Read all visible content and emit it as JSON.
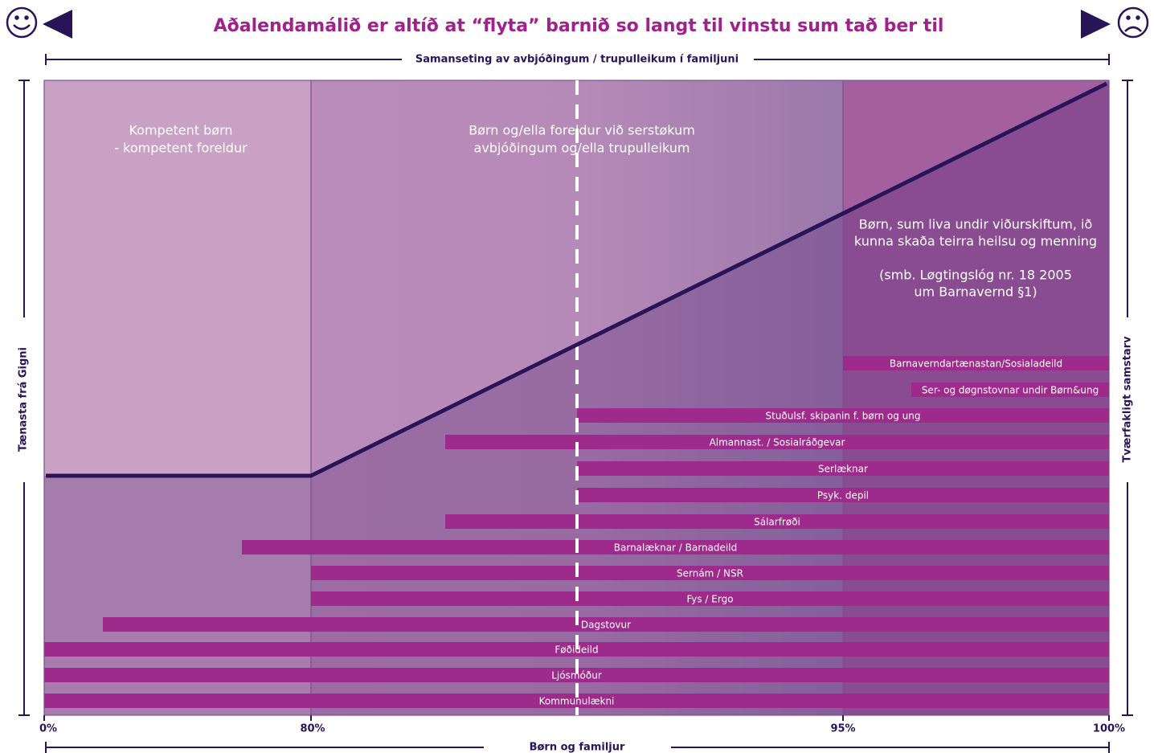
{
  "header": {
    "title": "Aðalendamálið er altíð at “flyta” barnið so langt til vinstu sum tað ber til"
  },
  "top_axis": {
    "label": "Samanseting av avbjóðingum / trupulleikum í familjuni"
  },
  "left_axis": {
    "label": "Tænasta frá Gigni"
  },
  "right_axis": {
    "label": "Tværfakligt samstarv"
  },
  "bottom_axis": {
    "label": "Børn og familjur",
    "ticks": [
      "0%",
      "80%",
      "95%",
      "100%"
    ]
  },
  "regions": [
    {
      "lines": [
        "Kompetent børn",
        "- kompetent foreldur"
      ]
    },
    {
      "lines": [
        "Børn og/ella foreldur við serstøkum",
        "avbjóðingum og/ella trupulleikum"
      ]
    },
    {
      "lines": [
        "Børn, sum liva undir viðurskiftum, ið",
        "kunna skaða teirra heilsu og menning",
        "(smb. Løgtingslóg nr. 18 2005",
        "um Barnavernd §1)"
      ]
    }
  ],
  "services": [
    "Barnaverndartænastan/Sosialadeild",
    "Ser- og døgnstovnar undir Børn&ung",
    "Stuðulsf. skipanin f. børn og ung",
    "Almannast. / Sosialráðgevar",
    "Serlæknar",
    "Psyk. depil",
    "Sálarfrøði",
    "Barnalæknar / Barnadeild",
    "Sernám / NSR",
    "Fys / Ergo",
    "Dagstovur",
    "Føðideild",
    "Ljósmóður",
    "Kommunulækni"
  ]
}
